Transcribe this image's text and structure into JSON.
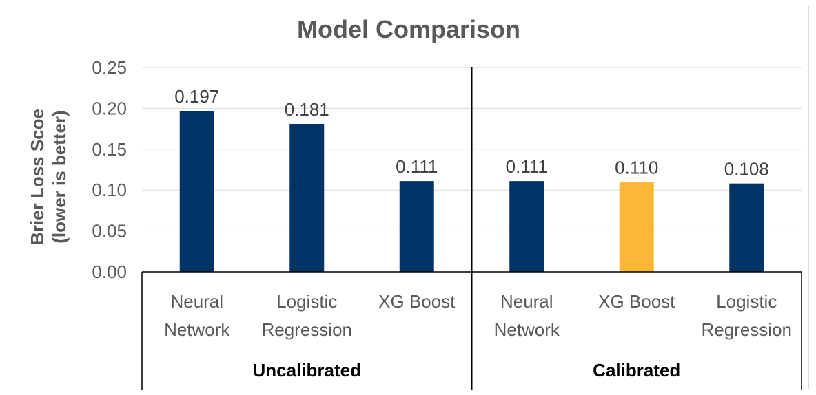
{
  "chart_data": {
    "type": "bar",
    "title": "Model Comparison",
    "ylabel": [
      "Brier Loss Scoe",
      "(lower is better)"
    ],
    "xlabel": "",
    "ylim": [
      0,
      0.25
    ],
    "yticks": [
      "0.00",
      "0.05",
      "0.10",
      "0.15",
      "0.20",
      "0.25"
    ],
    "grid": true,
    "legend": "none",
    "groups": [
      {
        "name": "Uncalibrated",
        "bars": [
          {
            "category": [
              "Neural",
              "Network"
            ],
            "value": 0.197,
            "label": "0.197",
            "color": "#003366"
          },
          {
            "category": [
              "Logistic",
              "Regression"
            ],
            "value": 0.181,
            "label": "0.181",
            "color": "#003366"
          },
          {
            "category": [
              "XG Boost"
            ],
            "value": 0.111,
            "label": "0.111",
            "color": "#003366"
          }
        ]
      },
      {
        "name": "Calibrated",
        "bars": [
          {
            "category": [
              "Neural",
              "Network"
            ],
            "value": 0.111,
            "label": "0.111",
            "color": "#003366"
          },
          {
            "category": [
              "XG Boost"
            ],
            "value": 0.11,
            "label": "0.110",
            "color": "#FBB735"
          },
          {
            "category": [
              "Logistic",
              "Regression"
            ],
            "value": 0.108,
            "label": "0.108",
            "color": "#003366"
          }
        ]
      }
    ]
  }
}
